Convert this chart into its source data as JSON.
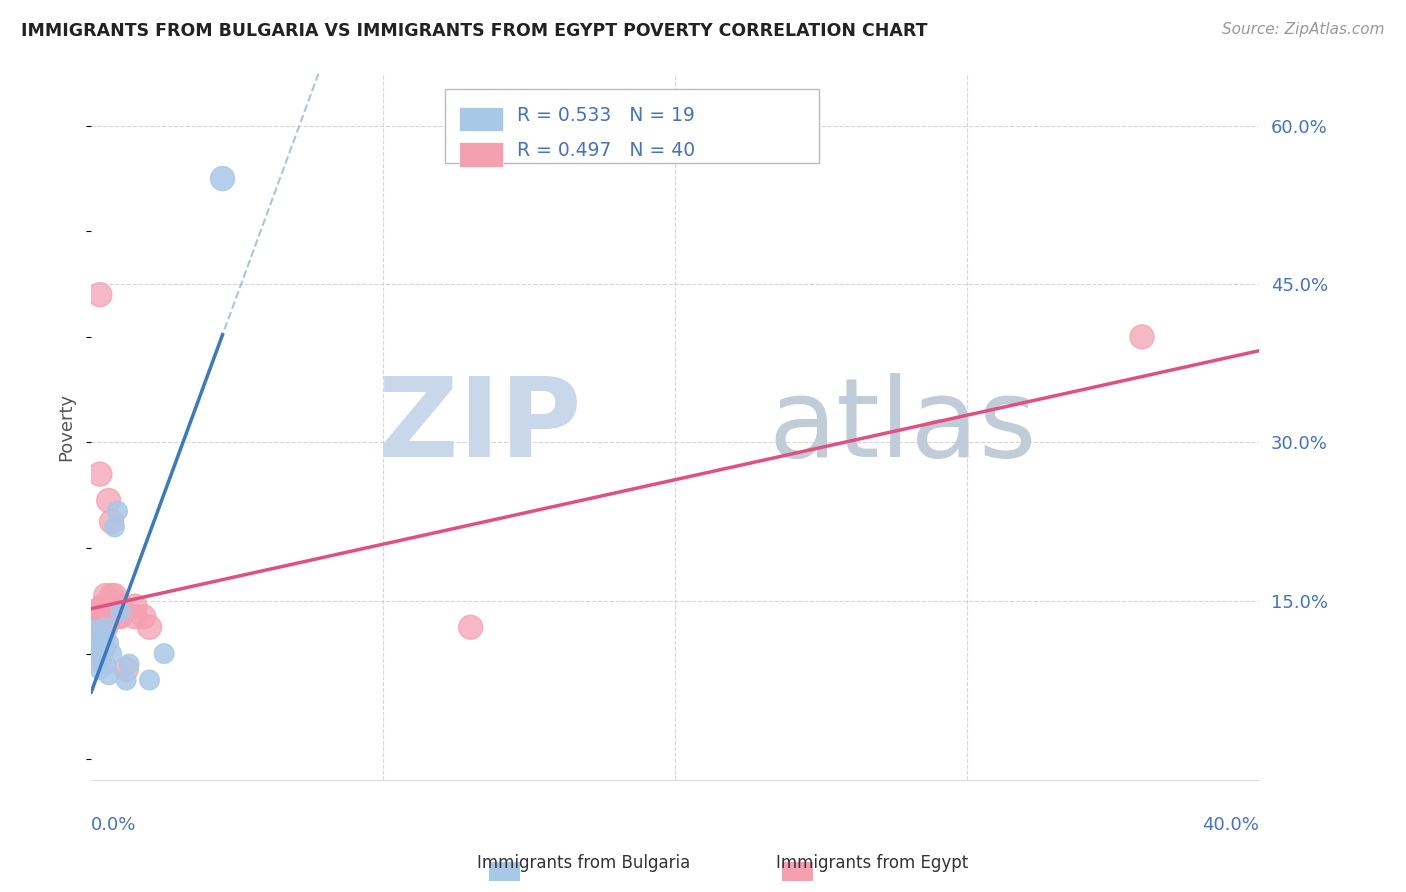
{
  "title": "IMMIGRANTS FROM BULGARIA VS IMMIGRANTS FROM EGYPT POVERTY CORRELATION CHART",
  "source": "Source: ZipAtlas.com",
  "ylabel": "Poverty",
  "x_range": [
    0.0,
    0.4
  ],
  "y_range": [
    -0.02,
    0.65
  ],
  "bulgaria_color": "#a8c8e8",
  "egypt_color": "#f4a0b0",
  "bulgaria_line_color": "#3a7abf",
  "egypt_line_color": "#e05080",
  "bulgaria_dash_color": "#90b8d8",
  "R_bulgaria": 0.533,
  "N_bulgaria": 19,
  "R_egypt": 0.497,
  "N_egypt": 40,
  "bg_color": "#ffffff",
  "grid_color": "#cccccc",
  "watermark_zip_color": "#c8d8ea",
  "watermark_atlas_color": "#c0ccd8",
  "bulgaria_points": [
    [
      0.001,
      0.12
    ],
    [
      0.002,
      0.1
    ],
    [
      0.003,
      0.11
    ],
    [
      0.003,
      0.085
    ],
    [
      0.004,
      0.115
    ],
    [
      0.004,
      0.1
    ],
    [
      0.005,
      0.125
    ],
    [
      0.005,
      0.09
    ],
    [
      0.006,
      0.11
    ],
    [
      0.006,
      0.08
    ],
    [
      0.007,
      0.1
    ],
    [
      0.008,
      0.22
    ],
    [
      0.009,
      0.235
    ],
    [
      0.01,
      0.14
    ],
    [
      0.012,
      0.075
    ],
    [
      0.013,
      0.09
    ],
    [
      0.02,
      0.075
    ],
    [
      0.025,
      0.1
    ],
    [
      0.045,
      0.55
    ]
  ],
  "egypt_points": [
    [
      0.001,
      0.135
    ],
    [
      0.001,
      0.115
    ],
    [
      0.001,
      0.105
    ],
    [
      0.002,
      0.14
    ],
    [
      0.002,
      0.125
    ],
    [
      0.002,
      0.115
    ],
    [
      0.002,
      0.105
    ],
    [
      0.002,
      0.095
    ],
    [
      0.003,
      0.135
    ],
    [
      0.003,
      0.125
    ],
    [
      0.003,
      0.27
    ],
    [
      0.003,
      0.44
    ],
    [
      0.004,
      0.145
    ],
    [
      0.004,
      0.135
    ],
    [
      0.004,
      0.115
    ],
    [
      0.004,
      0.105
    ],
    [
      0.005,
      0.155
    ],
    [
      0.005,
      0.145
    ],
    [
      0.005,
      0.135
    ],
    [
      0.005,
      0.125
    ],
    [
      0.006,
      0.245
    ],
    [
      0.006,
      0.145
    ],
    [
      0.006,
      0.135
    ],
    [
      0.007,
      0.225
    ],
    [
      0.007,
      0.155
    ],
    [
      0.007,
      0.145
    ],
    [
      0.007,
      0.135
    ],
    [
      0.008,
      0.155
    ],
    [
      0.008,
      0.145
    ],
    [
      0.009,
      0.135
    ],
    [
      0.01,
      0.145
    ],
    [
      0.01,
      0.135
    ],
    [
      0.001,
      0.13
    ],
    [
      0.012,
      0.085
    ],
    [
      0.015,
      0.145
    ],
    [
      0.015,
      0.135
    ],
    [
      0.018,
      0.135
    ],
    [
      0.02,
      0.125
    ],
    [
      0.13,
      0.125
    ],
    [
      0.36,
      0.4
    ]
  ],
  "bulgaria_sizes": [
    300,
    200,
    200,
    200,
    200,
    200,
    200,
    200,
    200,
    200,
    200,
    200,
    200,
    200,
    200,
    200,
    200,
    200,
    300
  ],
  "egypt_sizes": [
    600,
    300,
    300,
    300,
    300,
    300,
    300,
    300,
    300,
    300,
    300,
    300,
    300,
    300,
    300,
    300,
    300,
    300,
    300,
    300,
    300,
    300,
    300,
    300,
    300,
    300,
    300,
    300,
    300,
    300,
    300,
    300,
    300,
    300,
    300,
    300,
    300,
    300,
    300,
    300
  ]
}
